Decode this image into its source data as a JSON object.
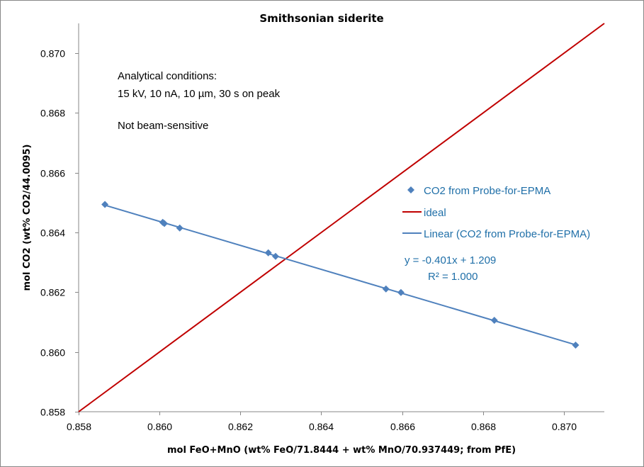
{
  "chart_data": {
    "type": "scatter",
    "title": "Smithsonian siderite",
    "xlabel": "mol FeO+MnO (wt% FeO/71.8444 + wt% MnO/70.937449; from PfE)",
    "ylabel": "mol CO2 (wt% CO2/44.0095)",
    "xlim": [
      0.858,
      0.871
    ],
    "ylim": [
      0.858,
      0.871
    ],
    "x_ticks": [
      0.858,
      0.86,
      0.862,
      0.864,
      0.866,
      0.868,
      0.87
    ],
    "x_tick_labels": [
      "0.858",
      "0.860",
      "0.862",
      "0.864",
      "0.866",
      "0.868",
      "0.870"
    ],
    "y_ticks": [
      0.858,
      0.86,
      0.862,
      0.864,
      0.866,
      0.868,
      0.87
    ],
    "y_tick_labels": [
      "0.858",
      "0.860",
      "0.862",
      "0.864",
      "0.866",
      "0.868",
      "0.870"
    ],
    "grid": false,
    "legend_position": "right",
    "series": [
      {
        "name": "CO2 from Probe-for-EPMA",
        "kind": "scatter",
        "marker": "diamond",
        "color": "#4f81bd",
        "x": [
          0.85865,
          0.86008,
          0.86012,
          0.8605,
          0.86269,
          0.86287,
          0.8656,
          0.86597,
          0.86828,
          0.87029
        ],
        "y": [
          0.86494,
          0.86434,
          0.8643,
          0.86415,
          0.86332,
          0.8632,
          0.86211,
          0.86199,
          0.86106,
          0.86023
        ]
      },
      {
        "name": "ideal",
        "kind": "line",
        "color": "#c00000",
        "x": [
          0.858,
          0.871
        ],
        "y": [
          0.858,
          0.871
        ]
      },
      {
        "name": "Linear (CO2 from Probe-for-EPMA)",
        "kind": "trendline",
        "color": "#4f81bd",
        "slope": -0.401,
        "intercept": 1.209,
        "x": [
          0.85865,
          0.87029
        ]
      }
    ],
    "annotations": [
      "Analytical conditions:",
      "15 kV, 10 nA, 10 µm, 30 s on peak",
      "Not beam-sensitive"
    ],
    "trendline_equation": "y = -0.401x + 1.209",
    "r_squared": "R² = 1.000"
  },
  "legend": {
    "items": [
      {
        "label": "CO2 from Probe-for-EPMA",
        "symbol": "diamond",
        "color": "#4f81bd"
      },
      {
        "label": "ideal",
        "symbol": "line",
        "color": "#c00000"
      },
      {
        "label": "Linear (CO2 from Probe-for-EPMA)",
        "symbol": "line",
        "color": "#4f81bd"
      }
    ]
  },
  "colors": {
    "axis": "#878787",
    "legend_text": "#1f6fa8",
    "text": "#000000"
  }
}
